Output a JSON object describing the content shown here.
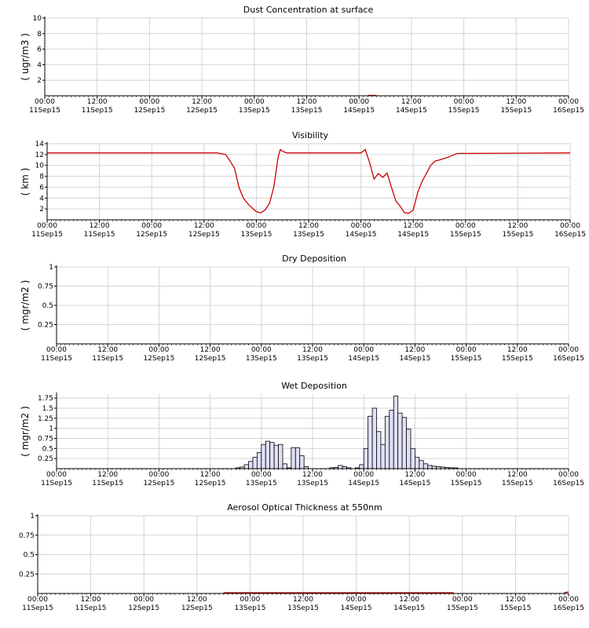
{
  "colors": {
    "grid": "#d4d4d4",
    "axis": "#000000",
    "line": "#cc0000",
    "bar_fill": "#e0e0f8",
    "bar_stroke": "#000000"
  },
  "x_ticks": [
    {
      "time": "00:00",
      "date": "11Sep15"
    },
    {
      "time": "12:00",
      "date": "11Sep15"
    },
    {
      "time": "00:00",
      "date": "12Sep15"
    },
    {
      "time": "12:00",
      "date": "12Sep15"
    },
    {
      "time": "00:00",
      "date": "13Sep15"
    },
    {
      "time": "12:00",
      "date": "13Sep15"
    },
    {
      "time": "00:00",
      "date": "14Sep15"
    },
    {
      "time": "12:00",
      "date": "14Sep15"
    },
    {
      "time": "00:00",
      "date": "15Sep15"
    },
    {
      "time": "12:00",
      "date": "15Sep15"
    },
    {
      "time": "00:00",
      "date": "16Sep15"
    }
  ],
  "chart_data": [
    {
      "type": "line",
      "title": "Dust Concentration at surface",
      "ylabel": "( ugr/m3 )",
      "xlim": [
        "2015-09-11 00:00",
        "2015-09-16 00:00"
      ],
      "ylim": [
        0,
        10
      ],
      "y_ticks": [
        2,
        4,
        6,
        8,
        10
      ],
      "y_tick_labels": [
        "2",
        "4",
        "6",
        "8",
        "10"
      ],
      "grid": true,
      "series": [
        {
          "points": [
            [
              "2015-09-14 02:00",
              0.05
            ],
            [
              "2015-09-14 04:00",
              0.05
            ]
          ]
        }
      ]
    },
    {
      "type": "line",
      "title": "Visibility",
      "ylabel": "( km )",
      "xlim": [
        "2015-09-11 00:00",
        "2015-09-16 00:00"
      ],
      "ylim": [
        0,
        14
      ],
      "y_ticks": [
        2,
        4,
        6,
        8,
        10,
        12,
        14
      ],
      "y_tick_labels": [
        "2",
        "4",
        "6",
        "8",
        "10",
        "12",
        "14"
      ],
      "grid": true,
      "series": [
        {
          "points": [
            [
              "2015-09-11 00:00",
              12.3
            ],
            [
              "2015-09-12 15:00",
              12.3
            ],
            [
              "2015-09-12 17:00",
              12.0
            ],
            [
              "2015-09-12 19:00",
              9.5
            ],
            [
              "2015-09-12 20:00",
              6.0
            ],
            [
              "2015-09-12 21:00",
              4.0
            ],
            [
              "2015-09-12 22:00",
              3.0
            ],
            [
              "2015-09-12 23:00",
              2.2
            ],
            [
              "2015-09-13 00:00",
              1.5
            ],
            [
              "2015-09-13 01:00",
              1.3
            ],
            [
              "2015-09-13 02:00",
              1.8
            ],
            [
              "2015-09-13 03:00",
              3.0
            ],
            [
              "2015-09-13 04:00",
              6.0
            ],
            [
              "2015-09-13 05:00",
              11.5
            ],
            [
              "2015-09-13 05:30",
              12.9
            ],
            [
              "2015-09-13 06:00",
              12.6
            ],
            [
              "2015-09-13 07:00",
              12.3
            ],
            [
              "2015-09-14 00:00",
              12.3
            ],
            [
              "2015-09-14 01:00",
              12.9
            ],
            [
              "2015-09-14 02:00",
              10.5
            ],
            [
              "2015-09-14 03:00",
              7.5
            ],
            [
              "2015-09-14 04:00",
              8.5
            ],
            [
              "2015-09-14 05:00",
              7.8
            ],
            [
              "2015-09-14 06:00",
              8.6
            ],
            [
              "2015-09-14 07:00",
              6.0
            ],
            [
              "2015-09-14 08:00",
              3.5
            ],
            [
              "2015-09-14 09:00",
              2.5
            ],
            [
              "2015-09-14 10:00",
              1.3
            ],
            [
              "2015-09-14 11:00",
              1.2
            ],
            [
              "2015-09-14 12:00",
              1.8
            ],
            [
              "2015-09-14 13:00",
              5.0
            ],
            [
              "2015-09-14 14:00",
              7.0
            ],
            [
              "2015-09-14 15:00",
              8.5
            ],
            [
              "2015-09-14 16:00",
              10.0
            ],
            [
              "2015-09-14 17:00",
              10.8
            ],
            [
              "2015-09-14 18:00",
              11.0
            ],
            [
              "2015-09-14 20:00",
              11.5
            ],
            [
              "2015-09-14 22:00",
              12.2
            ],
            [
              "2015-09-16 00:00",
              12.3
            ]
          ]
        }
      ]
    },
    {
      "type": "line",
      "title": "Dry Deposition",
      "ylabel": "( mgr/m2 )",
      "xlim": [
        "2015-09-11 00:00",
        "2015-09-16 00:00"
      ],
      "ylim": [
        0,
        1
      ],
      "y_ticks": [
        0.25,
        0.5,
        0.75,
        1
      ],
      "y_tick_labels": [
        "0.25",
        "0.5",
        "0.75",
        "1"
      ],
      "grid": true,
      "series": []
    },
    {
      "type": "bar",
      "title": "Wet Deposition",
      "ylabel": "( mgr/m2 )",
      "xlim": [
        "2015-09-11 00:00",
        "2015-09-16 00:00"
      ],
      "ylim": [
        0,
        1.85
      ],
      "y_ticks": [
        0.25,
        0.5,
        0.75,
        1,
        1.25,
        1.5,
        1.75
      ],
      "y_tick_labels": [
        "0.25",
        "0.5",
        "0.75",
        "1",
        "1.25",
        "1.5",
        "1.75"
      ],
      "grid": true,
      "bar_width_hours": 1,
      "bars": [
        [
          "2015-09-12 18:00",
          0.02
        ],
        [
          "2015-09-12 19:00",
          0.04
        ],
        [
          "2015-09-12 20:00",
          0.1
        ],
        [
          "2015-09-12 21:00",
          0.18
        ],
        [
          "2015-09-12 22:00",
          0.28
        ],
        [
          "2015-09-12 23:00",
          0.4
        ],
        [
          "2015-09-13 00:00",
          0.6
        ],
        [
          "2015-09-13 01:00",
          0.68
        ],
        [
          "2015-09-13 02:00",
          0.65
        ],
        [
          "2015-09-13 03:00",
          0.58
        ],
        [
          "2015-09-13 04:00",
          0.6
        ],
        [
          "2015-09-13 05:00",
          0.12
        ],
        [
          "2015-09-13 06:00",
          0.02
        ],
        [
          "2015-09-13 07:00",
          0.52
        ],
        [
          "2015-09-13 08:00",
          0.52
        ],
        [
          "2015-09-13 09:00",
          0.32
        ],
        [
          "2015-09-13 10:00",
          0.05
        ],
        [
          "2015-09-13 16:00",
          0.02
        ],
        [
          "2015-09-13 17:00",
          0.03
        ],
        [
          "2015-09-13 18:00",
          0.08
        ],
        [
          "2015-09-13 19:00",
          0.05
        ],
        [
          "2015-09-13 20:00",
          0.02
        ],
        [
          "2015-09-13 22:00",
          0.02
        ],
        [
          "2015-09-13 23:00",
          0.1
        ],
        [
          "2015-09-14 00:00",
          0.5
        ],
        [
          "2015-09-14 01:00",
          1.3
        ],
        [
          "2015-09-14 02:00",
          1.5
        ],
        [
          "2015-09-14 03:00",
          0.92
        ],
        [
          "2015-09-14 04:00",
          0.6
        ],
        [
          "2015-09-14 05:00",
          1.3
        ],
        [
          "2015-09-14 06:00",
          1.45
        ],
        [
          "2015-09-14 07:00",
          1.8
        ],
        [
          "2015-09-14 08:00",
          1.38
        ],
        [
          "2015-09-14 09:00",
          1.27
        ],
        [
          "2015-09-14 10:00",
          0.98
        ],
        [
          "2015-09-14 11:00",
          0.5
        ],
        [
          "2015-09-14 12:00",
          0.28
        ],
        [
          "2015-09-14 13:00",
          0.2
        ],
        [
          "2015-09-14 14:00",
          0.12
        ],
        [
          "2015-09-14 15:00",
          0.08
        ],
        [
          "2015-09-14 16:00",
          0.06
        ],
        [
          "2015-09-14 17:00",
          0.05
        ],
        [
          "2015-09-14 18:00",
          0.04
        ],
        [
          "2015-09-14 19:00",
          0.03
        ],
        [
          "2015-09-14 20:00",
          0.02
        ],
        [
          "2015-09-14 21:00",
          0.02
        ]
      ]
    },
    {
      "type": "line",
      "title": "Aerosol Optical Thickness at 550nm",
      "ylabel": "",
      "xlim": [
        "2015-09-11 00:00",
        "2015-09-16 00:00"
      ],
      "ylim": [
        0,
        1
      ],
      "y_ticks": [
        0.25,
        0.5,
        0.75,
        1
      ],
      "y_tick_labels": [
        "0.25",
        "0.5",
        "0.75",
        "1"
      ],
      "grid": true,
      "series": [
        {
          "points": [
            [
              "2015-09-12 18:00",
              0.01
            ],
            [
              "2015-09-14 22:00",
              0.01
            ]
          ]
        },
        {
          "points": [
            [
              "2015-09-15 23:00",
              0.01
            ],
            [
              "2015-09-16 00:00",
              0.02
            ]
          ]
        }
      ]
    }
  ]
}
